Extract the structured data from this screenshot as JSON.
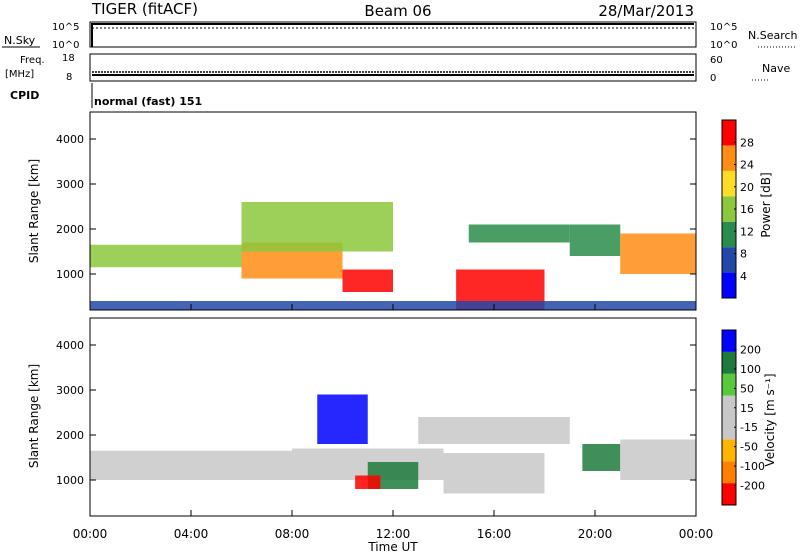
{
  "header": {
    "radar": "TIGER (fitACF)",
    "beam": "Beam 06",
    "date": "28/Mar/2013"
  },
  "status_panels": {
    "nsky_label": "N.Sky",
    "nsky_ticks": [
      "10^5",
      "10^0"
    ],
    "nsearch_label": "N.Search",
    "freq_label_1": "Freq.",
    "freq_label_2": "[MHz]",
    "freq_ticks": [
      "18",
      "8"
    ],
    "nave_label": "Nave",
    "nave_ticks": [
      "60",
      "0"
    ],
    "cpid_label": "CPID",
    "cpid_value": "normal (fast) 151"
  },
  "x_axis": {
    "label": "Time UT",
    "ticks": [
      "00:00",
      "04:00",
      "08:00",
      "12:00",
      "16:00",
      "20:00",
      "00:00"
    ]
  },
  "chart_data": [
    {
      "type": "heatmap",
      "panel": "power",
      "ylabel": "Slant Range [km]",
      "yticks": [
        1000,
        2000,
        3000,
        4000
      ],
      "ylim": [
        200,
        4600
      ],
      "xlim_hours": [
        0,
        24
      ],
      "colorbar": {
        "label": "Power [dB]",
        "ticks": [
          "28",
          "24",
          "20",
          "16",
          "12",
          "8",
          "4"
        ],
        "colors": [
          "#0000ff",
          "#2348a8",
          "#2a8c4a",
          "#8cc83c",
          "#ffdc28",
          "#ff8c14",
          "#ff0000"
        ]
      },
      "bands": [
        {
          "t0": 0.0,
          "t1": 6.0,
          "r0": 1150,
          "r1": 1650,
          "value": 12
        },
        {
          "t0": 6.0,
          "t1": 10.0,
          "r0": 900,
          "r1": 1700,
          "value": 22
        },
        {
          "t0": 6.0,
          "t1": 12.0,
          "r0": 1500,
          "r1": 2600,
          "value": 12
        },
        {
          "t0": 10.0,
          "t1": 12.0,
          "r0": 600,
          "r1": 1100,
          "value": 26
        },
        {
          "t0": 14.5,
          "t1": 18.0,
          "r0": 200,
          "r1": 1100,
          "value": 26
        },
        {
          "t0": 15.0,
          "t1": 19.0,
          "r0": 1700,
          "r1": 2100,
          "value": 8
        },
        {
          "t0": 19.0,
          "t1": 21.0,
          "r0": 1400,
          "r1": 2100,
          "value": 8
        },
        {
          "t0": 21.0,
          "t1": 24.0,
          "r0": 1000,
          "r1": 1900,
          "value": 22
        },
        {
          "t0": 0.0,
          "t1": 24.0,
          "r0": 200,
          "r1": 400,
          "value": 6
        }
      ]
    },
    {
      "type": "heatmap",
      "panel": "velocity",
      "ylabel": "Slant Range [km]",
      "yticks": [
        1000,
        2000,
        3000,
        4000
      ],
      "ylim": [
        200,
        4600
      ],
      "xlim_hours": [
        0,
        24
      ],
      "colorbar": {
        "label": "Velocity [m s⁻¹]",
        "ticks": [
          "200",
          "100",
          "50",
          "15",
          "-15",
          "-50",
          "-100",
          "-200"
        ],
        "colors": [
          "#ff0000",
          "#ff8000",
          "#ffb400",
          "#c8c8c8",
          "#c8c8c8",
          "#5ac83c",
          "#1e7a3c",
          "#0000ff"
        ]
      },
      "bands": [
        {
          "t0": 0.0,
          "t1": 8.0,
          "r0": 1000,
          "r1": 1650,
          "value": 0
        },
        {
          "t0": 8.0,
          "t1": 14.0,
          "r0": 1000,
          "r1": 1700,
          "value": 0
        },
        {
          "t0": 9.0,
          "t1": 11.0,
          "r0": 1800,
          "r1": 2900,
          "value": 220
        },
        {
          "t0": 11.0,
          "t1": 13.0,
          "r0": 800,
          "r1": 1400,
          "value": 60
        },
        {
          "t0": 13.0,
          "t1": 19.0,
          "r0": 1800,
          "r1": 2400,
          "value": 0
        },
        {
          "t0": 14.0,
          "t1": 18.0,
          "r0": 700,
          "r1": 1600,
          "value": 0
        },
        {
          "t0": 19.5,
          "t1": 21.0,
          "r0": 1200,
          "r1": 1800,
          "value": 60
        },
        {
          "t0": 21.0,
          "t1": 24.0,
          "r0": 1000,
          "r1": 1900,
          "value": 0
        },
        {
          "t0": 10.5,
          "t1": 11.5,
          "r0": 800,
          "r1": 1100,
          "value": -220
        }
      ]
    }
  ]
}
